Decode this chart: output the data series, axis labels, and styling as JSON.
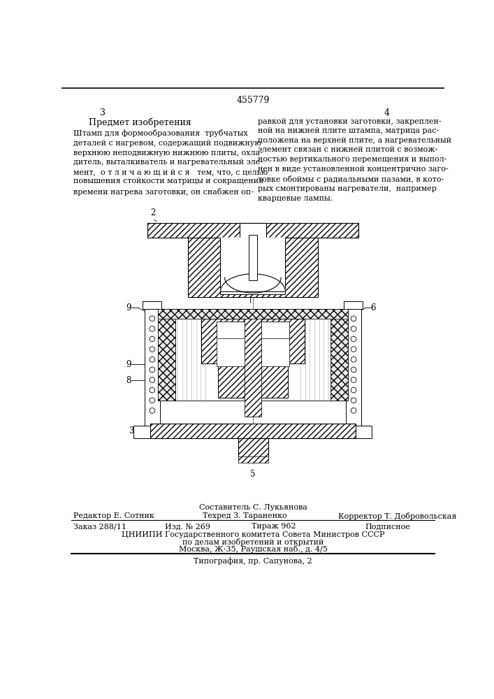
{
  "page_number_center": "455779",
  "page_num_left": "3",
  "page_num_right": "4",
  "section_title": "Предмет изобретения",
  "left_text": "Штамп для формообразования  трубчатых\nдеталей с нагревом, содержащий подвижную\nверхнюю неподвижную нижнюю плиты, охла-\nдитель, выталкиватель и нагревательный эле-\nмент,  о т л и ч а ю щ и й с я   тем, что, с целью\nповышения стойкости матрицы и сокращения\nвремени нагрева заготовки, он снабжен оп-",
  "right_text": "равкой для установки заготовки, закреплен-\nной на нижней плите штампа, матрица рас-\nположена на верхней плите, а нагревательный\nэлемент связан с нижней плитой с возмож-\nностью вертикального перемещения и выпол-\nнен в виде установленной концентрично заго-\nтовке обоймы с радиальными пазами, в кото-\nрых смонтированы нагреватели,  например\nкварцевые лампы.",
  "footer_compiler": "Составитель С. Лукьянова",
  "footer_editor": "Редактор Е. Сотник",
  "footer_techred": "Техред З. Тараненко",
  "footer_corrector": "Корректор Т. Добровольская",
  "footer_order": "Заказ 288/11",
  "footer_izdanie": "Изд. № 269",
  "footer_tirazh": "Тираж 962",
  "footer_podpisnoe": "Подписное",
  "footer_cnipi": "ЦНИИПИ Государственного комитета Совета Министров СССР",
  "footer_po_delam": "по делам изобретений и открытий",
  "footer_moscow": "Москва, Ж-35, Раушская наб., д. 4/5",
  "footer_typography": "Типография, пр. Сапунова, 2",
  "bg_color": "#ffffff",
  "text_color": "#000000",
  "line_color": "#000000",
  "hatch_color": "#000000"
}
